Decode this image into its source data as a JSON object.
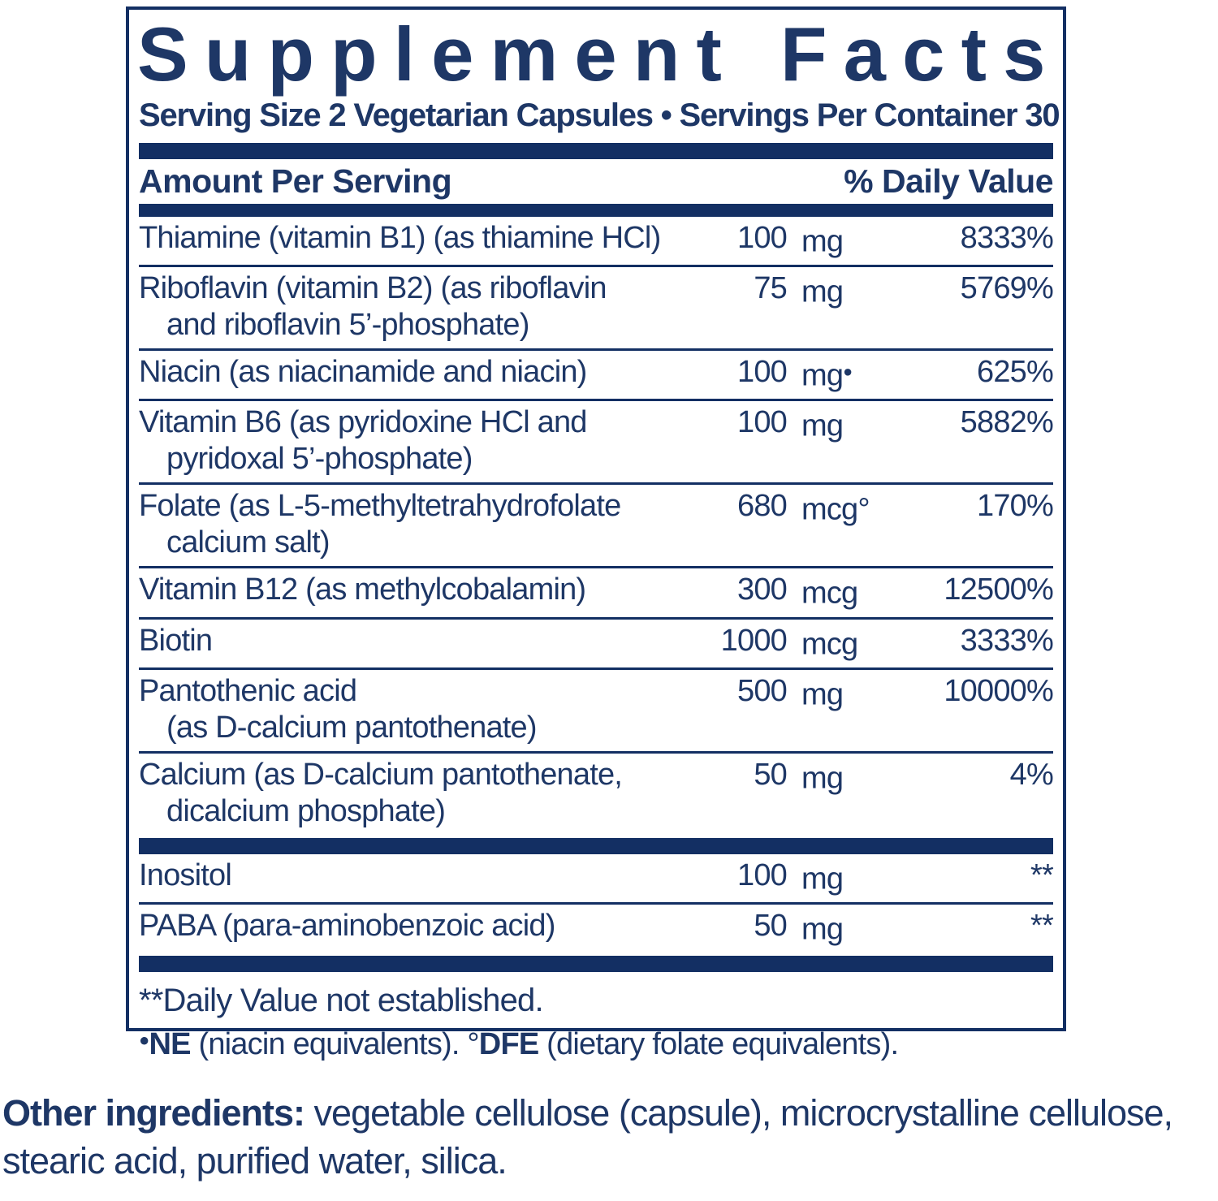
{
  "colors": {
    "navy": "#132f63",
    "text_navy": "#1e3766",
    "background": "#ffffff"
  },
  "panel": {
    "title": "Supplement Facts",
    "serving_line": "Serving Size 2 Vegetarian Capsules • Servings Per Container 30",
    "header": {
      "left": "Amount Per Serving",
      "right": "% Daily Value"
    },
    "rows": [
      {
        "name": "Thiamine (vitamin B1) (as thiamine HCl)",
        "name2": "",
        "amount": "100",
        "unit": "mg",
        "sup": "",
        "dv": "8333%"
      },
      {
        "name": "Riboflavin (vitamin B2) (as riboflavin",
        "name2": "and riboflavin 5’-phosphate)",
        "amount": "75",
        "unit": "mg",
        "sup": "",
        "dv": "5769%"
      },
      {
        "name": "Niacin (as niacinamide and niacin)",
        "name2": "",
        "amount": "100",
        "unit": "mg",
        "sup": "●",
        "dv": "625%"
      },
      {
        "name": "Vitamin B6 (as pyridoxine HCl and",
        "name2": "pyridoxal 5’-phosphate)",
        "amount": "100",
        "unit": "mg",
        "sup": "",
        "dv": "5882%"
      },
      {
        "name": "Folate (as L-5-methyltetrahydrofolate",
        "name2": "calcium salt)",
        "amount": "680",
        "unit": "mcg°",
        "sup": "",
        "dv": "170%"
      },
      {
        "name": "Vitamin B12 (as methylcobalamin)",
        "name2": "",
        "amount": "300",
        "unit": "mcg",
        "sup": "",
        "dv": "12500%"
      },
      {
        "name": "Biotin",
        "name2": "",
        "amount": "1000",
        "unit": "mcg",
        "sup": "",
        "dv": "3333%"
      },
      {
        "name": "Pantothenic acid",
        "name2": "(as D-calcium pantothenate)",
        "amount": "500",
        "unit": "mg",
        "sup": "",
        "dv": "10000%"
      },
      {
        "name": "Calcium (as D-calcium pantothenate,",
        "name2": "dicalcium phosphate)",
        "amount": "50",
        "unit": "mg",
        "sup": "",
        "dv": "4%",
        "bar_after": true
      },
      {
        "name": "Inositol",
        "name2": "",
        "amount": "100",
        "unit": "mg",
        "sup": "",
        "dv": "**"
      },
      {
        "name": "PABA (para-aminobenzoic acid)",
        "name2": "",
        "amount": "50",
        "unit": "mg",
        "sup": "",
        "dv": "**",
        "bar_after": true
      }
    ],
    "footnote1": "**Daily Value not established.",
    "footnote2": {
      "bullet": "●",
      "ne": "NE",
      "t1": " (niacin equivalents). °",
      "dfe": "DFE",
      "t2": " (dietary folate equivalents)."
    }
  },
  "other_ingredients": {
    "label": "Other ingredients:",
    "text": " vegetable cellulose (capsule), microcrystalline cellulose, stearic acid, purified water, silica."
  }
}
